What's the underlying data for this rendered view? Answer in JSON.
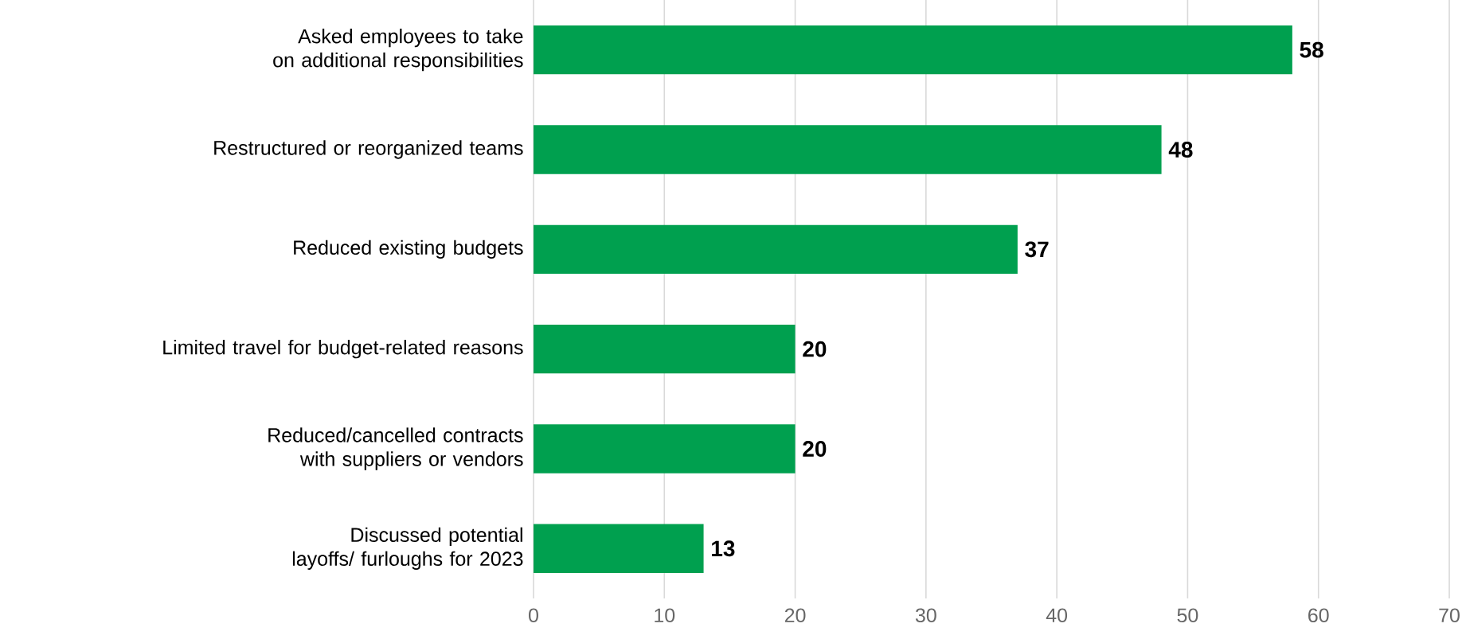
{
  "chart_data": {
    "type": "bar",
    "orientation": "horizontal",
    "categories": [
      "Asked employees to take on additional responsibilities",
      "Restructured or reorganized teams",
      "Reduced existing budgets",
      "Limited travel for budget-related reasons",
      "Reduced/cancelled contracts with suppliers or vendors",
      "Discussed potential layoffs/ furloughs for 2023"
    ],
    "values": [
      58,
      48,
      37,
      20,
      20,
      13
    ],
    "color": "#00a04f",
    "xlim": [
      0,
      70
    ],
    "xticks": [
      0,
      10,
      20,
      30,
      40,
      50,
      60,
      70
    ],
    "grid": "x",
    "data_labels": true
  }
}
